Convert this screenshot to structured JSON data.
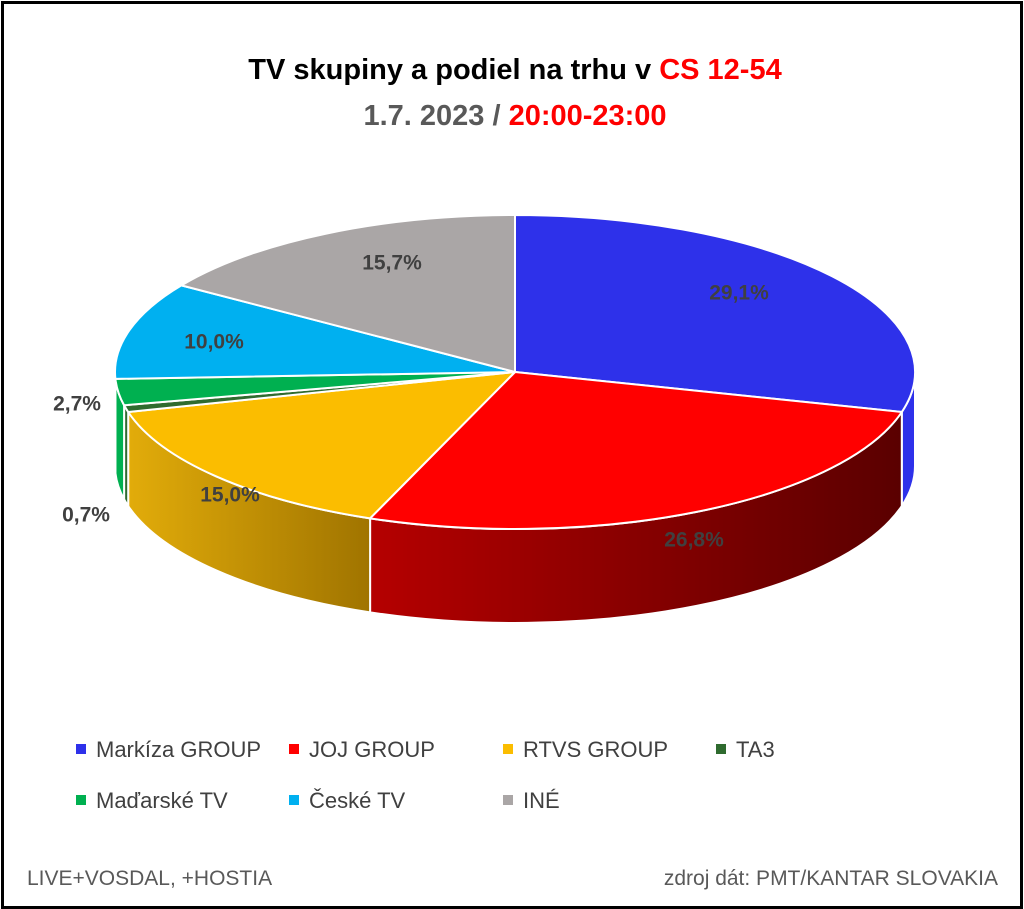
{
  "title": {
    "line1_prefix": "TV skupiny a podiel na trhu v ",
    "line1_highlight": "CS 12-54",
    "line2_date": "1.7. 2023",
    "line2_sep": " / ",
    "line2_time": "20:00-23:00"
  },
  "chart_data": {
    "type": "pie",
    "title": "TV skupiny a podiel na trhu v CS 12-54",
    "subtitle": "1.7. 2023 / 20:00-23:00",
    "categories": [
      "Markíza GROUP",
      "JOJ GROUP",
      "RTVS GROUP",
      "TA3",
      "Maďarské  TV",
      "České  TV",
      "INÉ"
    ],
    "values": [
      29.1,
      26.8,
      15.0,
      0.7,
      2.7,
      10.0,
      15.7
    ],
    "labels": [
      "29,1%",
      "26,8%",
      "15,0%",
      "0,7%",
      "2,7%",
      "10,0%",
      "15,7%"
    ],
    "colors": [
      "#2e31ea",
      "#ff0000",
      "#fbbd00",
      "#2f6b2f",
      "#00b050",
      "#00b0f0",
      "#aaa6a6"
    ],
    "legend_position": "bottom"
  },
  "footer": {
    "left": "LIVE+VOSDAL, +HOSTIA",
    "right": "zdroj dát: PMT/KANTAR SLOVAKIA"
  }
}
